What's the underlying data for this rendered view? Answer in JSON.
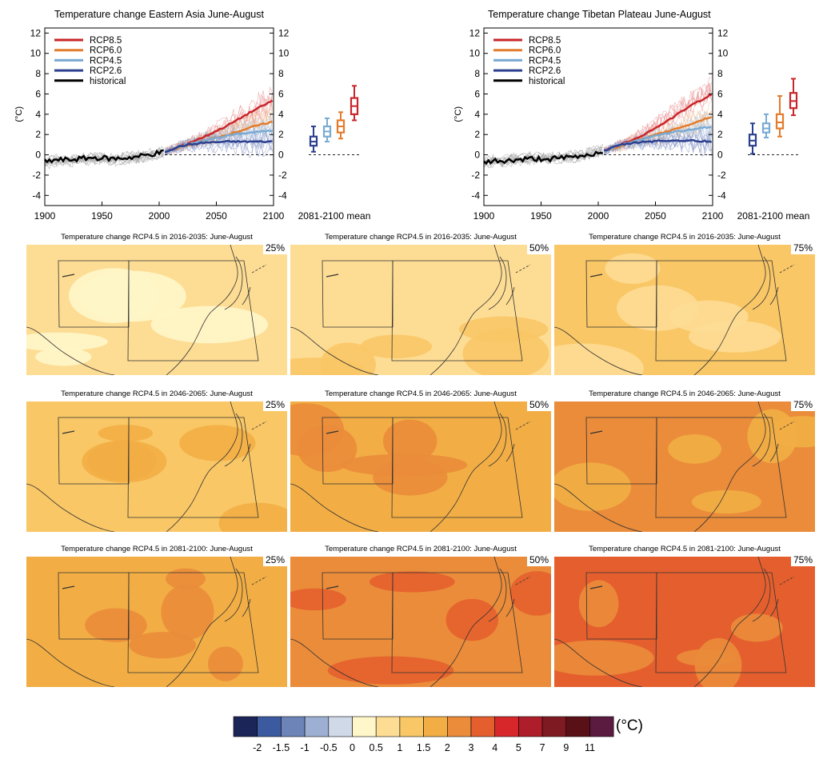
{
  "ts_panels": [
    {
      "title": "Temperature change Eastern Asia June-August",
      "ylabel": "(°C)",
      "yticks": [
        -4,
        -2,
        0,
        2,
        4,
        6,
        8,
        10,
        12
      ],
      "ylim": [
        -5,
        12.5
      ],
      "xticks": [
        1900,
        1950,
        2000,
        2050,
        2100
      ],
      "xlim": [
        1900,
        2100
      ],
      "box_label": "2081-2100 mean",
      "legend": [
        {
          "name": "RCP8.5",
          "color": "#c8262a"
        },
        {
          "name": "RCP6.0",
          "color": "#e37b2c"
        },
        {
          "name": "RCP4.5",
          "color": "#79aad4"
        },
        {
          "name": "RCP2.6",
          "color": "#2b3f8f"
        },
        {
          "name": "historical",
          "color": "#000000"
        }
      ]
    },
    {
      "title": "Temperature change Tibetan Plateau June-August",
      "ylabel": "(°C)",
      "yticks": [
        -4,
        -2,
        0,
        2,
        4,
        6,
        8,
        10,
        12
      ],
      "ylim": [
        -5,
        12.5
      ],
      "xticks": [
        1900,
        1950,
        2000,
        2050,
        2100
      ],
      "xlim": [
        1900,
        2100
      ],
      "box_label": "2081-2100 mean",
      "legend": [
        {
          "name": "RCP8.5",
          "color": "#c8262a"
        },
        {
          "name": "RCP6.0",
          "color": "#e37b2c"
        },
        {
          "name": "RCP4.5",
          "color": "#79aad4"
        },
        {
          "name": "RCP2.6",
          "color": "#2b3f8f"
        },
        {
          "name": "historical",
          "color": "#000000"
        }
      ]
    }
  ],
  "chart_data": [
    {
      "type": "line",
      "title": "Temperature change Eastern Asia June-August",
      "ylabel": "(°C)",
      "xlim": [
        1900,
        2100
      ],
      "ylim": [
        -5,
        12.5
      ],
      "series": [
        {
          "name": "historical",
          "x": [
            1900,
            1910,
            1920,
            1930,
            1940,
            1950,
            1960,
            1970,
            1980,
            1990,
            2000,
            2005
          ],
          "y": [
            -0.7,
            -0.5,
            -0.5,
            -0.4,
            -0.3,
            -0.3,
            -0.4,
            -0.3,
            -0.2,
            0.0,
            0.2,
            0.3
          ]
        },
        {
          "name": "RCP8.5",
          "x": [
            2005,
            2020,
            2040,
            2060,
            2080,
            2100
          ],
          "y": [
            0.3,
            0.9,
            1.8,
            2.9,
            4.2,
            5.4
          ]
        },
        {
          "name": "RCP6.0",
          "x": [
            2005,
            2020,
            2040,
            2060,
            2080,
            2100
          ],
          "y": [
            0.3,
            0.8,
            1.4,
            2.0,
            2.7,
            3.3
          ]
        },
        {
          "name": "RCP4.5",
          "x": [
            2005,
            2020,
            2040,
            2060,
            2080,
            2100
          ],
          "y": [
            0.3,
            0.9,
            1.4,
            1.9,
            2.2,
            2.4
          ]
        },
        {
          "name": "RCP2.6",
          "x": [
            2005,
            2020,
            2040,
            2060,
            2080,
            2100
          ],
          "y": [
            0.3,
            0.9,
            1.2,
            1.3,
            1.3,
            1.3
          ]
        }
      ],
      "boxes_2081_2100_mean": [
        {
          "name": "RCP2.6",
          "min": 0.3,
          "q1": 0.9,
          "median": 1.3,
          "q3": 1.8,
          "max": 2.8
        },
        {
          "name": "RCP4.5",
          "min": 1.3,
          "q1": 1.8,
          "median": 2.3,
          "q3": 2.8,
          "max": 3.6
        },
        {
          "name": "RCP6.0",
          "min": 1.6,
          "q1": 2.2,
          "median": 2.8,
          "q3": 3.4,
          "max": 4.2
        },
        {
          "name": "RCP8.5",
          "min": 3.4,
          "q1": 4.0,
          "median": 4.8,
          "q3": 5.6,
          "max": 6.8
        }
      ]
    },
    {
      "type": "line",
      "title": "Temperature change Tibetan Plateau June-August",
      "ylabel": "(°C)",
      "xlim": [
        1900,
        2100
      ],
      "ylim": [
        -5,
        12.5
      ],
      "series": [
        {
          "name": "historical",
          "x": [
            1900,
            1910,
            1920,
            1930,
            1940,
            1950,
            1960,
            1970,
            1980,
            1990,
            2000,
            2005
          ],
          "y": [
            -0.8,
            -0.6,
            -0.6,
            -0.5,
            -0.4,
            -0.4,
            -0.4,
            -0.3,
            -0.2,
            0.0,
            0.2,
            0.4
          ]
        },
        {
          "name": "RCP8.5",
          "x": [
            2005,
            2020,
            2040,
            2060,
            2080,
            2100
          ],
          "y": [
            0.4,
            1.0,
            2.0,
            3.3,
            4.8,
            6.0
          ]
        },
        {
          "name": "RCP6.0",
          "x": [
            2005,
            2020,
            2040,
            2060,
            2080,
            2100
          ],
          "y": [
            0.4,
            0.9,
            1.6,
            2.3,
            3.0,
            3.8
          ]
        },
        {
          "name": "RCP4.5",
          "x": [
            2005,
            2020,
            2040,
            2060,
            2080,
            2100
          ],
          "y": [
            0.4,
            1.0,
            1.6,
            2.1,
            2.5,
            2.8
          ]
        },
        {
          "name": "RCP2.6",
          "x": [
            2005,
            2020,
            2040,
            2060,
            2080,
            2100
          ],
          "y": [
            0.4,
            1.0,
            1.3,
            1.4,
            1.4,
            1.3
          ]
        }
      ],
      "boxes_2081_2100_mean": [
        {
          "name": "RCP2.6",
          "min": 0.1,
          "q1": 0.9,
          "median": 1.4,
          "q3": 2.0,
          "max": 3.1
        },
        {
          "name": "RCP4.5",
          "min": 1.7,
          "q1": 2.2,
          "median": 2.6,
          "q3": 3.1,
          "max": 4.0
        },
        {
          "name": "RCP6.0",
          "min": 1.8,
          "q1": 2.6,
          "median": 3.2,
          "q3": 4.0,
          "max": 5.8
        },
        {
          "name": "RCP8.5",
          "min": 3.9,
          "q1": 4.6,
          "median": 5.3,
          "q3": 6.1,
          "max": 7.5
        }
      ]
    }
  ],
  "maps": [
    {
      "title": "Temperature change RCP4.5 in 2016-2035: June-August",
      "pct": "25%",
      "base": "#fddc94",
      "patch": "#fff6c9",
      "level": 0.5
    },
    {
      "title": "Temperature change RCP4.5 in 2016-2035: June-August",
      "pct": "50%",
      "base": "#fddc94",
      "patch": "#f9c766",
      "level": 1
    },
    {
      "title": "Temperature change RCP4.5 in 2016-2035: June-August",
      "pct": "75%",
      "base": "#f9c766",
      "patch": "#fddc94",
      "level": 1
    },
    {
      "title": "Temperature change RCP4.5 in 2046-2065: June-August",
      "pct": "25%",
      "base": "#f9c766",
      "patch": "#f2ae45",
      "level": 1
    },
    {
      "title": "Temperature change RCP4.5 in 2046-2065: June-August",
      "pct": "50%",
      "base": "#f2ae45",
      "patch": "#ea8c3a",
      "level": 1.5
    },
    {
      "title": "Temperature change RCP4.5 in 2046-2065: June-August",
      "pct": "75%",
      "base": "#ea8c3a",
      "patch": "#f2ae45",
      "level": 2
    },
    {
      "title": "Temperature change RCP4.5 in 2081-2100: June-August",
      "pct": "25%",
      "base": "#f2ae45",
      "patch": "#ea8c3a",
      "level": 1.5
    },
    {
      "title": "Temperature change RCP4.5 in 2081-2100: June-August",
      "pct": "50%",
      "base": "#ea8c3a",
      "patch": "#e55f2e",
      "level": 2
    },
    {
      "title": "Temperature change RCP4.5 in 2081-2100: June-August",
      "pct": "75%",
      "base": "#e55f2e",
      "patch": "#ea8c3a",
      "level": 3
    }
  ],
  "colorbar": {
    "unit": "(°C)",
    "labels": [
      "-2",
      "-1.5",
      "-1",
      "-0.5",
      "0",
      "0.5",
      "1",
      "1.5",
      "2",
      "3",
      "4",
      "5",
      "7",
      "9",
      "11"
    ],
    "colors": [
      "#1c2557",
      "#3b5aa0",
      "#6d84b8",
      "#9db0d3",
      "#cfd9e8",
      "#fff6c9",
      "#fddc94",
      "#f9c766",
      "#f2ae45",
      "#ea8c3a",
      "#e55f2e",
      "#d7272b",
      "#ad1d2a",
      "#7e1a21",
      "#5a1017",
      "#5b1a40"
    ]
  }
}
